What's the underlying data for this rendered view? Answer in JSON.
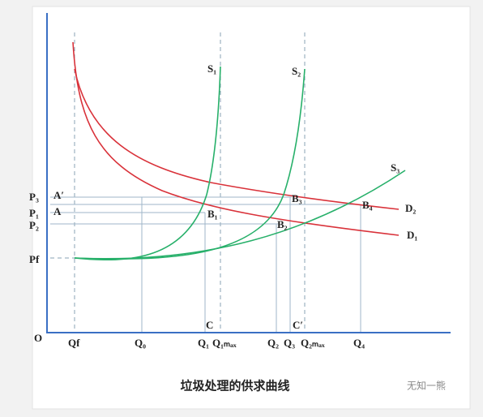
{
  "title": "垃圾处理的供求曲线",
  "watermark": "无知一熊",
  "curves": {
    "s1": "S₁",
    "s2": "S₂",
    "s3": "S₃",
    "d1": "D₁",
    "d2": "D₂"
  },
  "points": {
    "b1": "B₁",
    "b2": "B₂",
    "b3": "B₃",
    "b4": "B₄",
    "a_prime": "A′",
    "a": "A",
    "c": "C",
    "c_prime": "C′",
    "origin": "O"
  },
  "y_labels": {
    "p3": "P₃",
    "p1": "P₁",
    "p2": "P₂",
    "pf": "Pf"
  },
  "x_labels": {
    "qf": "Qf",
    "q0": "Q₀",
    "q1": "Q₁",
    "q1max": "Q₁ₘₐₓ",
    "q2": "Q₂",
    "q3": "Q₃",
    "q2max": "Q₂ₘₐₓ",
    "q4": "Q₄"
  }
}
